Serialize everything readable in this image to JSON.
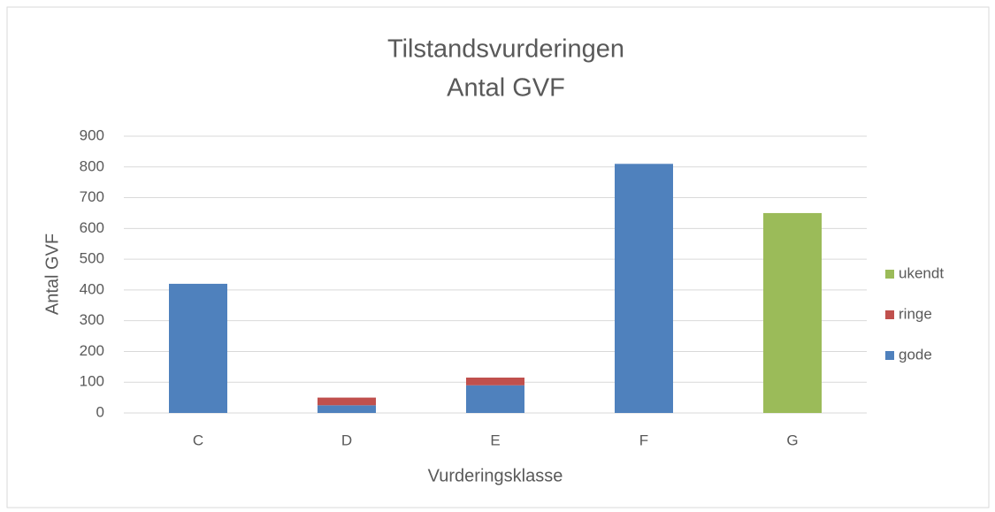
{
  "chart_data": {
    "type": "stacked_bar",
    "title": "Tilstandsvurderingen",
    "subtitle": "Antal GVF",
    "x_label": "Vurderingsklasse",
    "y_label": "Antal GVF",
    "categories": [
      "C",
      "D",
      "E",
      "F",
      "G"
    ],
    "series": [
      {
        "name": "gode",
        "color": "#4f81bd",
        "values": [
          420,
          25,
          90,
          810,
          null
        ]
      },
      {
        "name": "ringe",
        "color": "#c0504d",
        "values": [
          null,
          25,
          25,
          null,
          null
        ]
      },
      {
        "name": "ukendt",
        "color": "#9bbb59",
        "values": [
          null,
          null,
          null,
          null,
          650
        ]
      }
    ],
    "ylim": [
      0,
      900
    ],
    "yticks": [
      0,
      100,
      200,
      300,
      400,
      500,
      600,
      700,
      800,
      900
    ],
    "grid": true,
    "legend": "right"
  }
}
